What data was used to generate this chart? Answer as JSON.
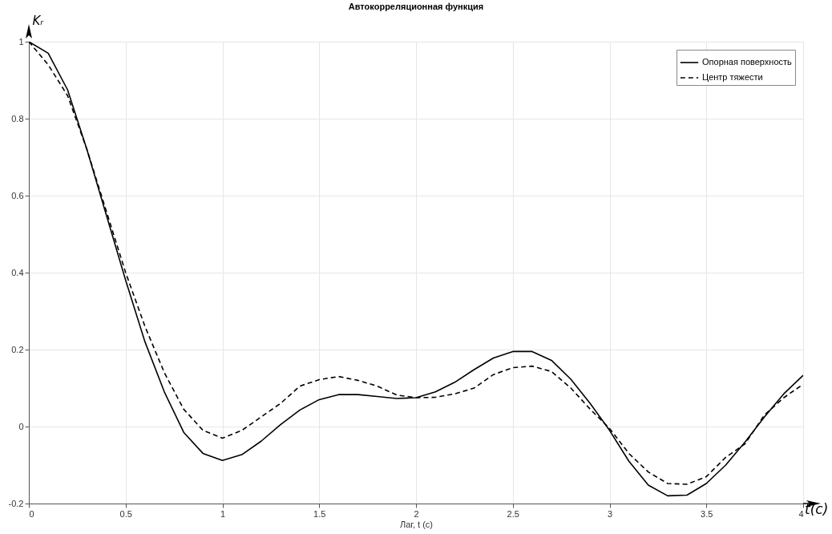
{
  "chart_data": {
    "type": "line",
    "title": "Автокорреляционная функция",
    "xlabel": "Лаг, t (c)",
    "ylabel": "Kᵣ",
    "annotations": [
      "t(c)"
    ],
    "x": [
      0,
      0.1,
      0.2,
      0.3,
      0.4,
      0.5,
      0.6,
      0.7,
      0.8,
      0.9,
      1.0,
      1.1,
      1.2,
      1.3,
      1.4,
      1.5,
      1.6,
      1.7,
      1.8,
      1.9,
      2.0,
      2.1,
      2.2,
      2.3,
      2.4,
      2.5,
      2.6,
      2.7,
      2.8,
      2.9,
      3.0,
      3.1,
      3.2,
      3.3,
      3.4,
      3.5,
      3.6,
      3.7,
      3.8,
      3.9,
      4.0
    ],
    "series": [
      {
        "name": "Опорная поверхность",
        "color": "#000000",
        "line_style": "solid",
        "values": [
          1,
          0.97,
          0.875,
          0.72,
          0.55,
          0.38,
          0.22,
          0.09,
          -0.015,
          -0.07,
          -0.088,
          -0.073,
          -0.038,
          0.005,
          0.043,
          0.07,
          0.083,
          0.083,
          0.078,
          0.073,
          0.075,
          0.09,
          0.115,
          0.148,
          0.178,
          0.195,
          0.195,
          0.172,
          0.123,
          0.06,
          -0.01,
          -0.09,
          -0.152,
          -0.18,
          -0.178,
          -0.148,
          -0.1,
          -0.04,
          0.025,
          0.085,
          0.133
        ]
      },
      {
        "name": "Центр тяжести",
        "color": "#000000",
        "line_style": "dashed",
        "values": [
          1,
          0.94,
          0.86,
          0.72,
          0.56,
          0.4,
          0.26,
          0.14,
          0.045,
          -0.01,
          -0.03,
          -0.01,
          0.025,
          0.06,
          0.105,
          0.122,
          0.13,
          0.12,
          0.105,
          0.082,
          0.075,
          0.076,
          0.085,
          0.1,
          0.135,
          0.153,
          0.157,
          0.143,
          0.1,
          0.045,
          -0.005,
          -0.07,
          -0.118,
          -0.148,
          -0.15,
          -0.13,
          -0.08,
          -0.045,
          0.03,
          0.075,
          0.11
        ]
      }
    ],
    "xlim": [
      0,
      4
    ],
    "xticks": [
      0,
      0.5,
      1,
      1.5,
      2,
      2.5,
      3,
      3.5,
      4
    ],
    "ylim": [
      -0.2,
      1
    ],
    "yticks": [
      -0.2,
      0,
      0.2,
      0.4,
      0.6,
      0.8,
      1
    ],
    "grid": true,
    "legend": "top right",
    "marker": "none"
  }
}
